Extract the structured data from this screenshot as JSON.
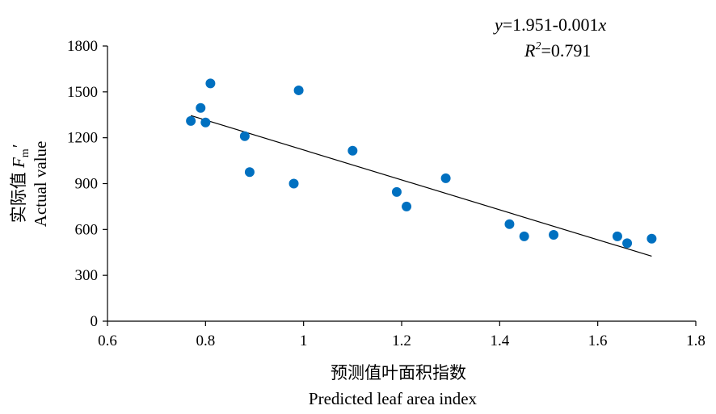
{
  "chart_data": {
    "type": "scatter",
    "xlabel": [
      "预测值叶面积指数",
      "Predicted leaf area index"
    ],
    "ylabel": {
      "cn_prefix": "实际值",
      "symbol": "F",
      "subscript": "m",
      "prime": "′",
      "en": "Actual value"
    },
    "xlim": [
      0.6,
      1.8
    ],
    "ylim": [
      0,
      1800
    ],
    "x_ticks": [
      0.6,
      0.8,
      1,
      1.2,
      1.4,
      1.6,
      1.8
    ],
    "x_tick_labels": [
      "0.6",
      "0.8",
      "1",
      "1.2",
      "1.4",
      "1.6",
      "1.8"
    ],
    "y_ticks": [
      0,
      300,
      600,
      900,
      1200,
      1500,
      1800
    ],
    "y_tick_labels": [
      "0",
      "300",
      "600",
      "900",
      "1200",
      "1500",
      "1800"
    ],
    "grid": false,
    "legend": "none",
    "marker_color": "#0070C0",
    "line_color": "#000000",
    "points": [
      {
        "x": 0.77,
        "y": 1310
      },
      {
        "x": 0.79,
        "y": 1395
      },
      {
        "x": 0.8,
        "y": 1300
      },
      {
        "x": 0.81,
        "y": 1555
      },
      {
        "x": 0.88,
        "y": 1210
      },
      {
        "x": 0.89,
        "y": 975
      },
      {
        "x": 0.98,
        "y": 900
      },
      {
        "x": 0.99,
        "y": 1510
      },
      {
        "x": 1.1,
        "y": 1115
      },
      {
        "x": 1.19,
        "y": 845
      },
      {
        "x": 1.21,
        "y": 750
      },
      {
        "x": 1.29,
        "y": 935
      },
      {
        "x": 1.42,
        "y": 635
      },
      {
        "x": 1.45,
        "y": 555
      },
      {
        "x": 1.51,
        "y": 565
      },
      {
        "x": 1.64,
        "y": 555
      },
      {
        "x": 1.66,
        "y": 510
      },
      {
        "x": 1.71,
        "y": 540
      }
    ],
    "trendline": {
      "x": [
        0.77,
        1.71
      ],
      "y": [
        1345,
        425
      ]
    },
    "equation": {
      "line1": {
        "y_var": "y",
        "mid": "=1.951-0.001",
        "x_var": "x"
      },
      "line2": {
        "r_var": "R",
        "sup": "2",
        "rest": "=0.791"
      }
    }
  }
}
